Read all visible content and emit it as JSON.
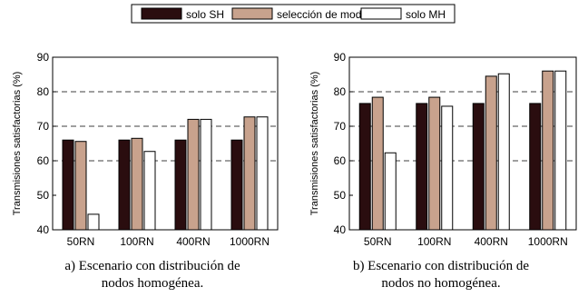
{
  "legend": {
    "items": [
      {
        "label": "solo SH",
        "color": "#2a0d0f"
      },
      {
        "label": "selección de modo",
        "color": "#c8a28d"
      },
      {
        "label": "solo MH",
        "color": "#ffffff"
      }
    ]
  },
  "chart_data": [
    {
      "type": "bar",
      "categories": [
        "50RN",
        "100RN",
        "400RN",
        "1000RN"
      ],
      "series": [
        {
          "name": "solo SH",
          "values": [
            66,
            66,
            66,
            66
          ]
        },
        {
          "name": "selección de modo",
          "values": [
            65.6,
            66.5,
            72,
            72.7
          ]
        },
        {
          "name": "solo MH",
          "values": [
            44.5,
            62.7,
            72,
            72.7
          ]
        }
      ],
      "ylabel": "Transmisiones satisfactorias (%)",
      "ylim": [
        40,
        90
      ],
      "yticks": [
        40,
        50,
        60,
        70,
        80,
        90
      ],
      "grid": "dashed at 60, 70, 80",
      "caption_line1": "a) Escenario con distribución de",
      "caption_line2": "nodos homogénea."
    },
    {
      "type": "bar",
      "categories": [
        "50RN",
        "100RN",
        "400RN",
        "1000RN"
      ],
      "series": [
        {
          "name": "solo SH",
          "values": [
            76.6,
            76.6,
            76.6,
            76.6
          ]
        },
        {
          "name": "selección de modo",
          "values": [
            78.4,
            78.4,
            84.5,
            86
          ]
        },
        {
          "name": "solo MH",
          "values": [
            62.3,
            75.8,
            85.2,
            86
          ]
        }
      ],
      "ylabel": "Transmisiones satisfactorias (%)",
      "ylim": [
        40,
        90
      ],
      "yticks": [
        40,
        50,
        60,
        70,
        80,
        90
      ],
      "grid": "dashed at 60, 70, 80",
      "caption_line1": "b) Escenario con distribución de",
      "caption_line2": "nodos no homogénea."
    }
  ]
}
